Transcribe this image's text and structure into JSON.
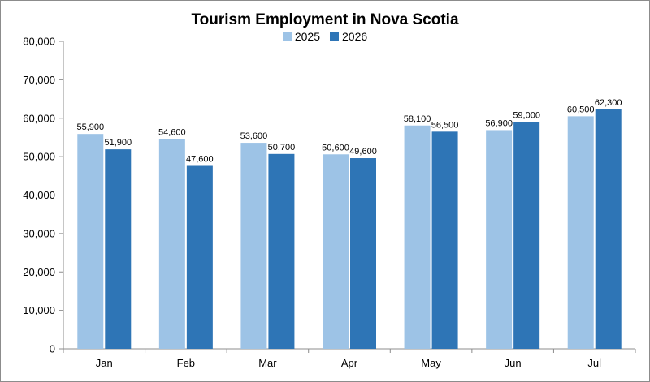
{
  "chart_data": {
    "type": "bar",
    "title": "Tourism Employment in Nova Scotia",
    "categories": [
      "Jan",
      "Feb",
      "Mar",
      "Apr",
      "May",
      "Jun",
      "Jul"
    ],
    "series": [
      {
        "name": "2025",
        "color": "#9dc3e6",
        "values": [
          55900,
          54600,
          53600,
          50600,
          58100,
          56900,
          60500
        ]
      },
      {
        "name": "2026",
        "color": "#2e75b6",
        "values": [
          51900,
          47600,
          50700,
          49600,
          56500,
          59000,
          62300
        ]
      }
    ],
    "ylim": [
      0,
      80000
    ],
    "y_ticks": [
      0,
      10000,
      20000,
      30000,
      40000,
      50000,
      60000,
      70000,
      80000
    ],
    "y_tick_labels": [
      "0",
      "10,000",
      "20,000",
      "30,000",
      "40,000",
      "50,000",
      "60,000",
      "70,000",
      "80,000"
    ],
    "data_labels": [
      [
        "55,900",
        "54,600",
        "53,600",
        "50,600",
        "58,100",
        "56,900",
        "60,500"
      ],
      [
        "51,900",
        "47,600",
        "50,700",
        "49,600",
        "56,500",
        "59,000",
        "62,300"
      ]
    ],
    "xlabel": "",
    "ylabel": "",
    "grid": false,
    "legend_position": "top-center"
  }
}
